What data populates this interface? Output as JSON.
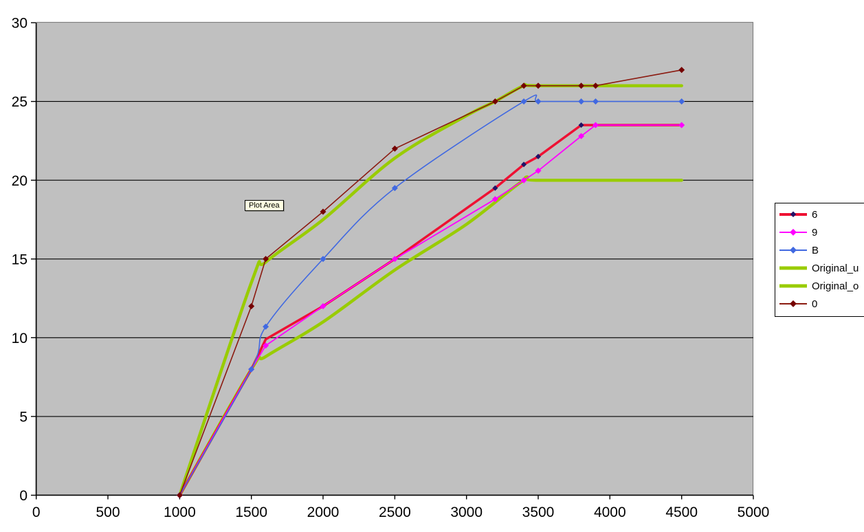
{
  "tooltip": {
    "text": "Plot Area"
  },
  "legend": {
    "border_color": "#000000",
    "background": "#FFFFFF",
    "items": [
      "6",
      "9",
      "B",
      "Original_u",
      "Original_o",
      "0"
    ]
  },
  "chart_data": {
    "type": "line",
    "title": "",
    "xlabel": "",
    "ylabel": "",
    "plot_background": "#C0C0C0",
    "plot_border_color": "#808080",
    "gridline_color": "#000000",
    "axis_color": "#000000",
    "grid": "horizontal-only",
    "legend_position": "right",
    "x_axis": {
      "min": 0,
      "max": 5000,
      "ticks": [
        0,
        500,
        1000,
        1500,
        2000,
        2500,
        3000,
        3500,
        4000,
        4500,
        5000
      ]
    },
    "y_axis": {
      "min": 0,
      "max": 30,
      "ticks": [
        0,
        5,
        10,
        15,
        20,
        25,
        30
      ]
    },
    "series": [
      {
        "name": "6",
        "color": "#EE1133",
        "width": 3.5,
        "smooth": false,
        "marker": "diamond",
        "marker_color": "#221266",
        "marker_size": 4,
        "marker_start_index": 5,
        "points": [
          [
            1000,
            0
          ],
          [
            1500,
            8
          ],
          [
            1600,
            9.9
          ],
          [
            2000,
            12
          ],
          [
            2500,
            15
          ],
          [
            3200,
            19.5
          ],
          [
            3400,
            21
          ],
          [
            3500,
            21.5
          ],
          [
            3800,
            23.5
          ],
          [
            4500,
            23.5
          ]
        ]
      },
      {
        "name": "9",
        "color": "#FF00FF",
        "width": 1.8,
        "smooth": false,
        "marker": "diamond",
        "marker_color": "#FF00FF",
        "marker_size": 4.5,
        "marker_start_index": 0,
        "points": [
          [
            1000,
            0
          ],
          [
            1500,
            8
          ],
          [
            1600,
            9.5
          ],
          [
            2000,
            12
          ],
          [
            2500,
            15
          ],
          [
            3200,
            18.8
          ],
          [
            3400,
            20
          ],
          [
            3500,
            20.6
          ],
          [
            3800,
            22.8
          ],
          [
            3900,
            23.5
          ],
          [
            4500,
            23.5
          ]
        ]
      },
      {
        "name": "B",
        "color": "#4169E1",
        "width": 1.6,
        "smooth": true,
        "marker": "diamond",
        "marker_color": "#4169E1",
        "marker_size": 4.5,
        "marker_start_index": 0,
        "points": [
          [
            1000,
            0
          ],
          [
            1500,
            8
          ],
          [
            1600,
            10.7
          ],
          [
            2000,
            15
          ],
          [
            2500,
            19.5
          ],
          [
            3400,
            25
          ],
          [
            3500,
            25
          ],
          [
            3800,
            25
          ],
          [
            3900,
            25
          ],
          [
            4500,
            25
          ]
        ]
      },
      {
        "name": "Original_u",
        "color": "#99CC00",
        "width": 4.5,
        "smooth": true,
        "marker": "none",
        "marker_color": "#99CC00",
        "marker_size": 0,
        "marker_start_index": 0,
        "points": [
          [
            1000,
            0
          ],
          [
            1500,
            8
          ],
          [
            1600,
            8.8
          ],
          [
            2000,
            11
          ],
          [
            2500,
            14.3
          ],
          [
            3000,
            17.2
          ],
          [
            3400,
            20
          ],
          [
            3500,
            20
          ],
          [
            4500,
            20
          ]
        ]
      },
      {
        "name": "Original_o",
        "color": "#99CC00",
        "width": 4.5,
        "smooth": true,
        "marker": "none",
        "marker_color": "#99CC00",
        "marker_size": 0,
        "marker_start_index": 0,
        "points": [
          [
            1000,
            0
          ],
          [
            1500,
            13.5
          ],
          [
            1600,
            14.8
          ],
          [
            2000,
            17.5
          ],
          [
            2500,
            21.4
          ],
          [
            3000,
            24.1
          ],
          [
            3200,
            25
          ],
          [
            3400,
            26
          ],
          [
            3500,
            26
          ],
          [
            4500,
            26
          ]
        ]
      },
      {
        "name": "0",
        "color": "#8B1A10",
        "width": 1.6,
        "smooth": false,
        "marker": "diamond",
        "marker_color": "#750000",
        "marker_size": 4.5,
        "marker_start_index": 0,
        "points": [
          [
            1000,
            0
          ],
          [
            1500,
            12
          ],
          [
            1600,
            15
          ],
          [
            2000,
            18
          ],
          [
            2500,
            22
          ],
          [
            3200,
            25
          ],
          [
            3400,
            26
          ],
          [
            3500,
            26
          ],
          [
            3800,
            26
          ],
          [
            3900,
            26
          ],
          [
            4500,
            27
          ]
        ]
      }
    ],
    "draw_order": [
      3,
      4,
      0,
      1,
      2,
      5
    ]
  }
}
